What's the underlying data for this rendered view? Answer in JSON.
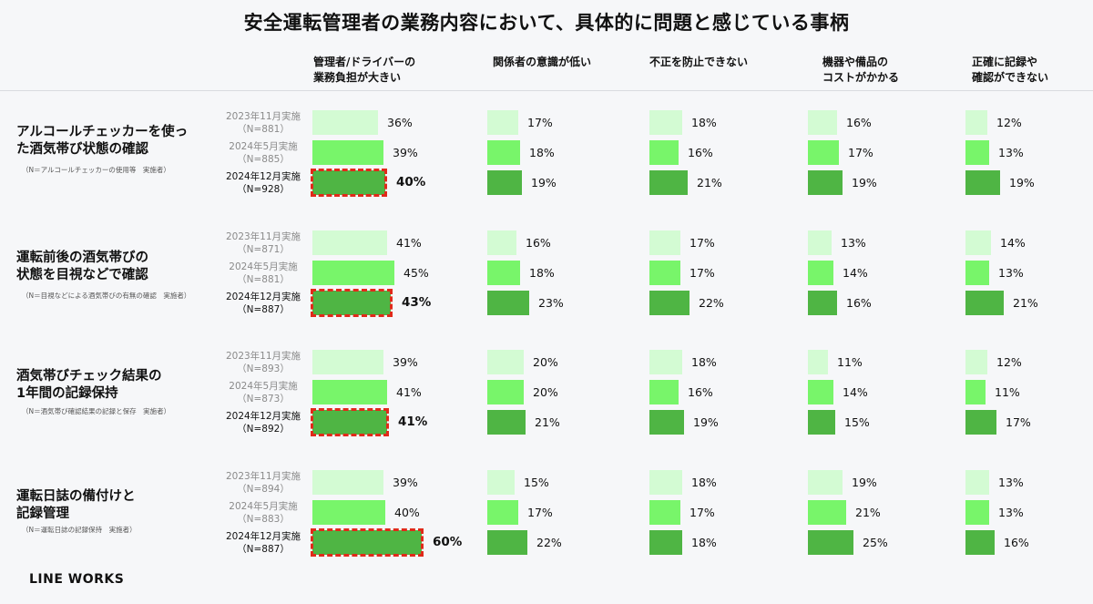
{
  "title": "安全運転管理者の業務内容において、具体的に問題と感じている事柄",
  "brand": "LINE WORKS",
  "columns": [
    "管理者/ドライバーの\n業務負担が大きい",
    "関係者の意識が低い",
    "不正を防止できない",
    "機器や備品の\nコストがかかる",
    "正確に記録や\n確認ができない"
  ],
  "series_colors": [
    "#d3fbd3",
    "#78f56a",
    "#4fb544"
  ],
  "highlight_color": "#e02a1a",
  "rows": [
    {
      "label": "アルコールチェッカーを使っ\nた酒気帯び状態の確認",
      "sub": "（N＝アルコールチェッカーの使用等　実施者）",
      "surveys": [
        "2023年11月実施\n（N=881）",
        "2024年5月実施\n（N=885）",
        "2024年12月実施\n（N=928）"
      ]
    },
    {
      "label": "運転前後の酒気帯びの\n状態を目視などで確認",
      "sub": "（N＝目視などによる酒気帯びの有無の確認　実施者）",
      "surveys": [
        "2023年11月実施\n（N=871）",
        "2024年5月実施\n（N=881）",
        "2024年12月実施\n（N=887）"
      ]
    },
    {
      "label": "酒気帯びチェック結果の\n1年間の記録保持",
      "sub": "（N＝酒気帯び確認結果の記録と保存　実施者）",
      "surveys": [
        "2023年11月実施\n（N=893）",
        "2024年5月実施\n（N=873）",
        "2024年12月実施\n（N=892）"
      ]
    },
    {
      "label": "運転日誌の備付けと\n記録管理",
      "sub": "（N＝運転日誌の記録保持　実施者）",
      "surveys": [
        "2023年11月実施\n（N=894）",
        "2024年5月実施\n（N=883）",
        "2024年12月実施\n（N=887）"
      ]
    }
  ],
  "chart_data": {
    "type": "bar",
    "unit": "%",
    "series": [
      "2023年11月実施",
      "2024年5月実施",
      "2024年12月実施"
    ],
    "categories": [
      "管理者/ドライバーの業務負担が大きい",
      "関係者の意識が低い",
      "不正を防止できない",
      "機器や備品のコストがかかる",
      "正確に記録や確認ができない"
    ],
    "groups": [
      {
        "values": [
          [
            36,
            39,
            40
          ],
          [
            17,
            18,
            19
          ],
          [
            18,
            16,
            21
          ],
          [
            16,
            17,
            19
          ],
          [
            12,
            13,
            19
          ]
        ]
      },
      {
        "values": [
          [
            41,
            45,
            43
          ],
          [
            16,
            18,
            23
          ],
          [
            17,
            17,
            22
          ],
          [
            13,
            14,
            16
          ],
          [
            14,
            13,
            21
          ]
        ]
      },
      {
        "values": [
          [
            39,
            41,
            41
          ],
          [
            20,
            20,
            21
          ],
          [
            18,
            16,
            19
          ],
          [
            11,
            14,
            15
          ],
          [
            12,
            11,
            17
          ]
        ]
      },
      {
        "values": [
          [
            39,
            40,
            60
          ],
          [
            15,
            17,
            22
          ],
          [
            18,
            17,
            18
          ],
          [
            19,
            21,
            25
          ],
          [
            13,
            13,
            16
          ]
        ]
      }
    ],
    "highlighted": {
      "category": 0,
      "series": 2
    }
  }
}
